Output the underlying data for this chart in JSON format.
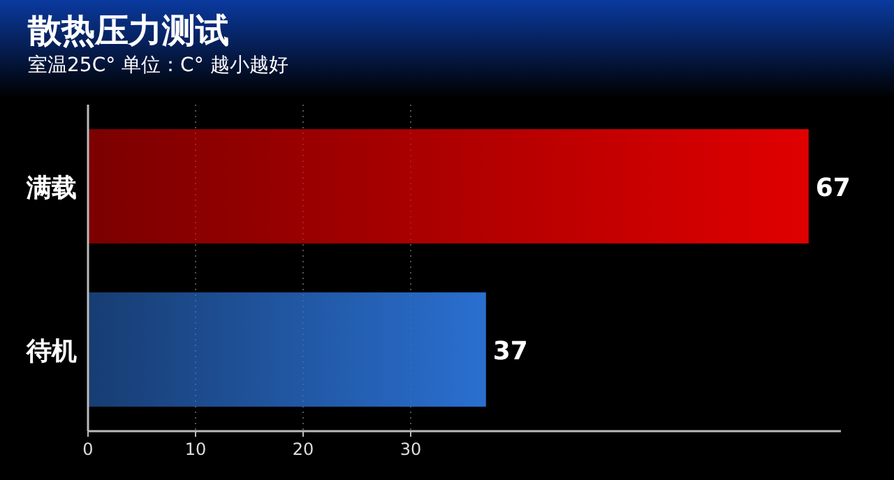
{
  "chart_data": {
    "type": "bar",
    "orientation": "horizontal",
    "title": "散热压力测试",
    "subtitle": "室温25C°  单位：C°  越小越好",
    "categories": [
      "满载",
      "待机"
    ],
    "values": [
      67,
      37
    ],
    "colors": [
      "#e00000",
      "#2a6fd0"
    ],
    "xlim": [
      0,
      70
    ],
    "xticks": [
      0,
      10,
      20,
      30
    ],
    "grid": "x",
    "data_labels": true
  }
}
